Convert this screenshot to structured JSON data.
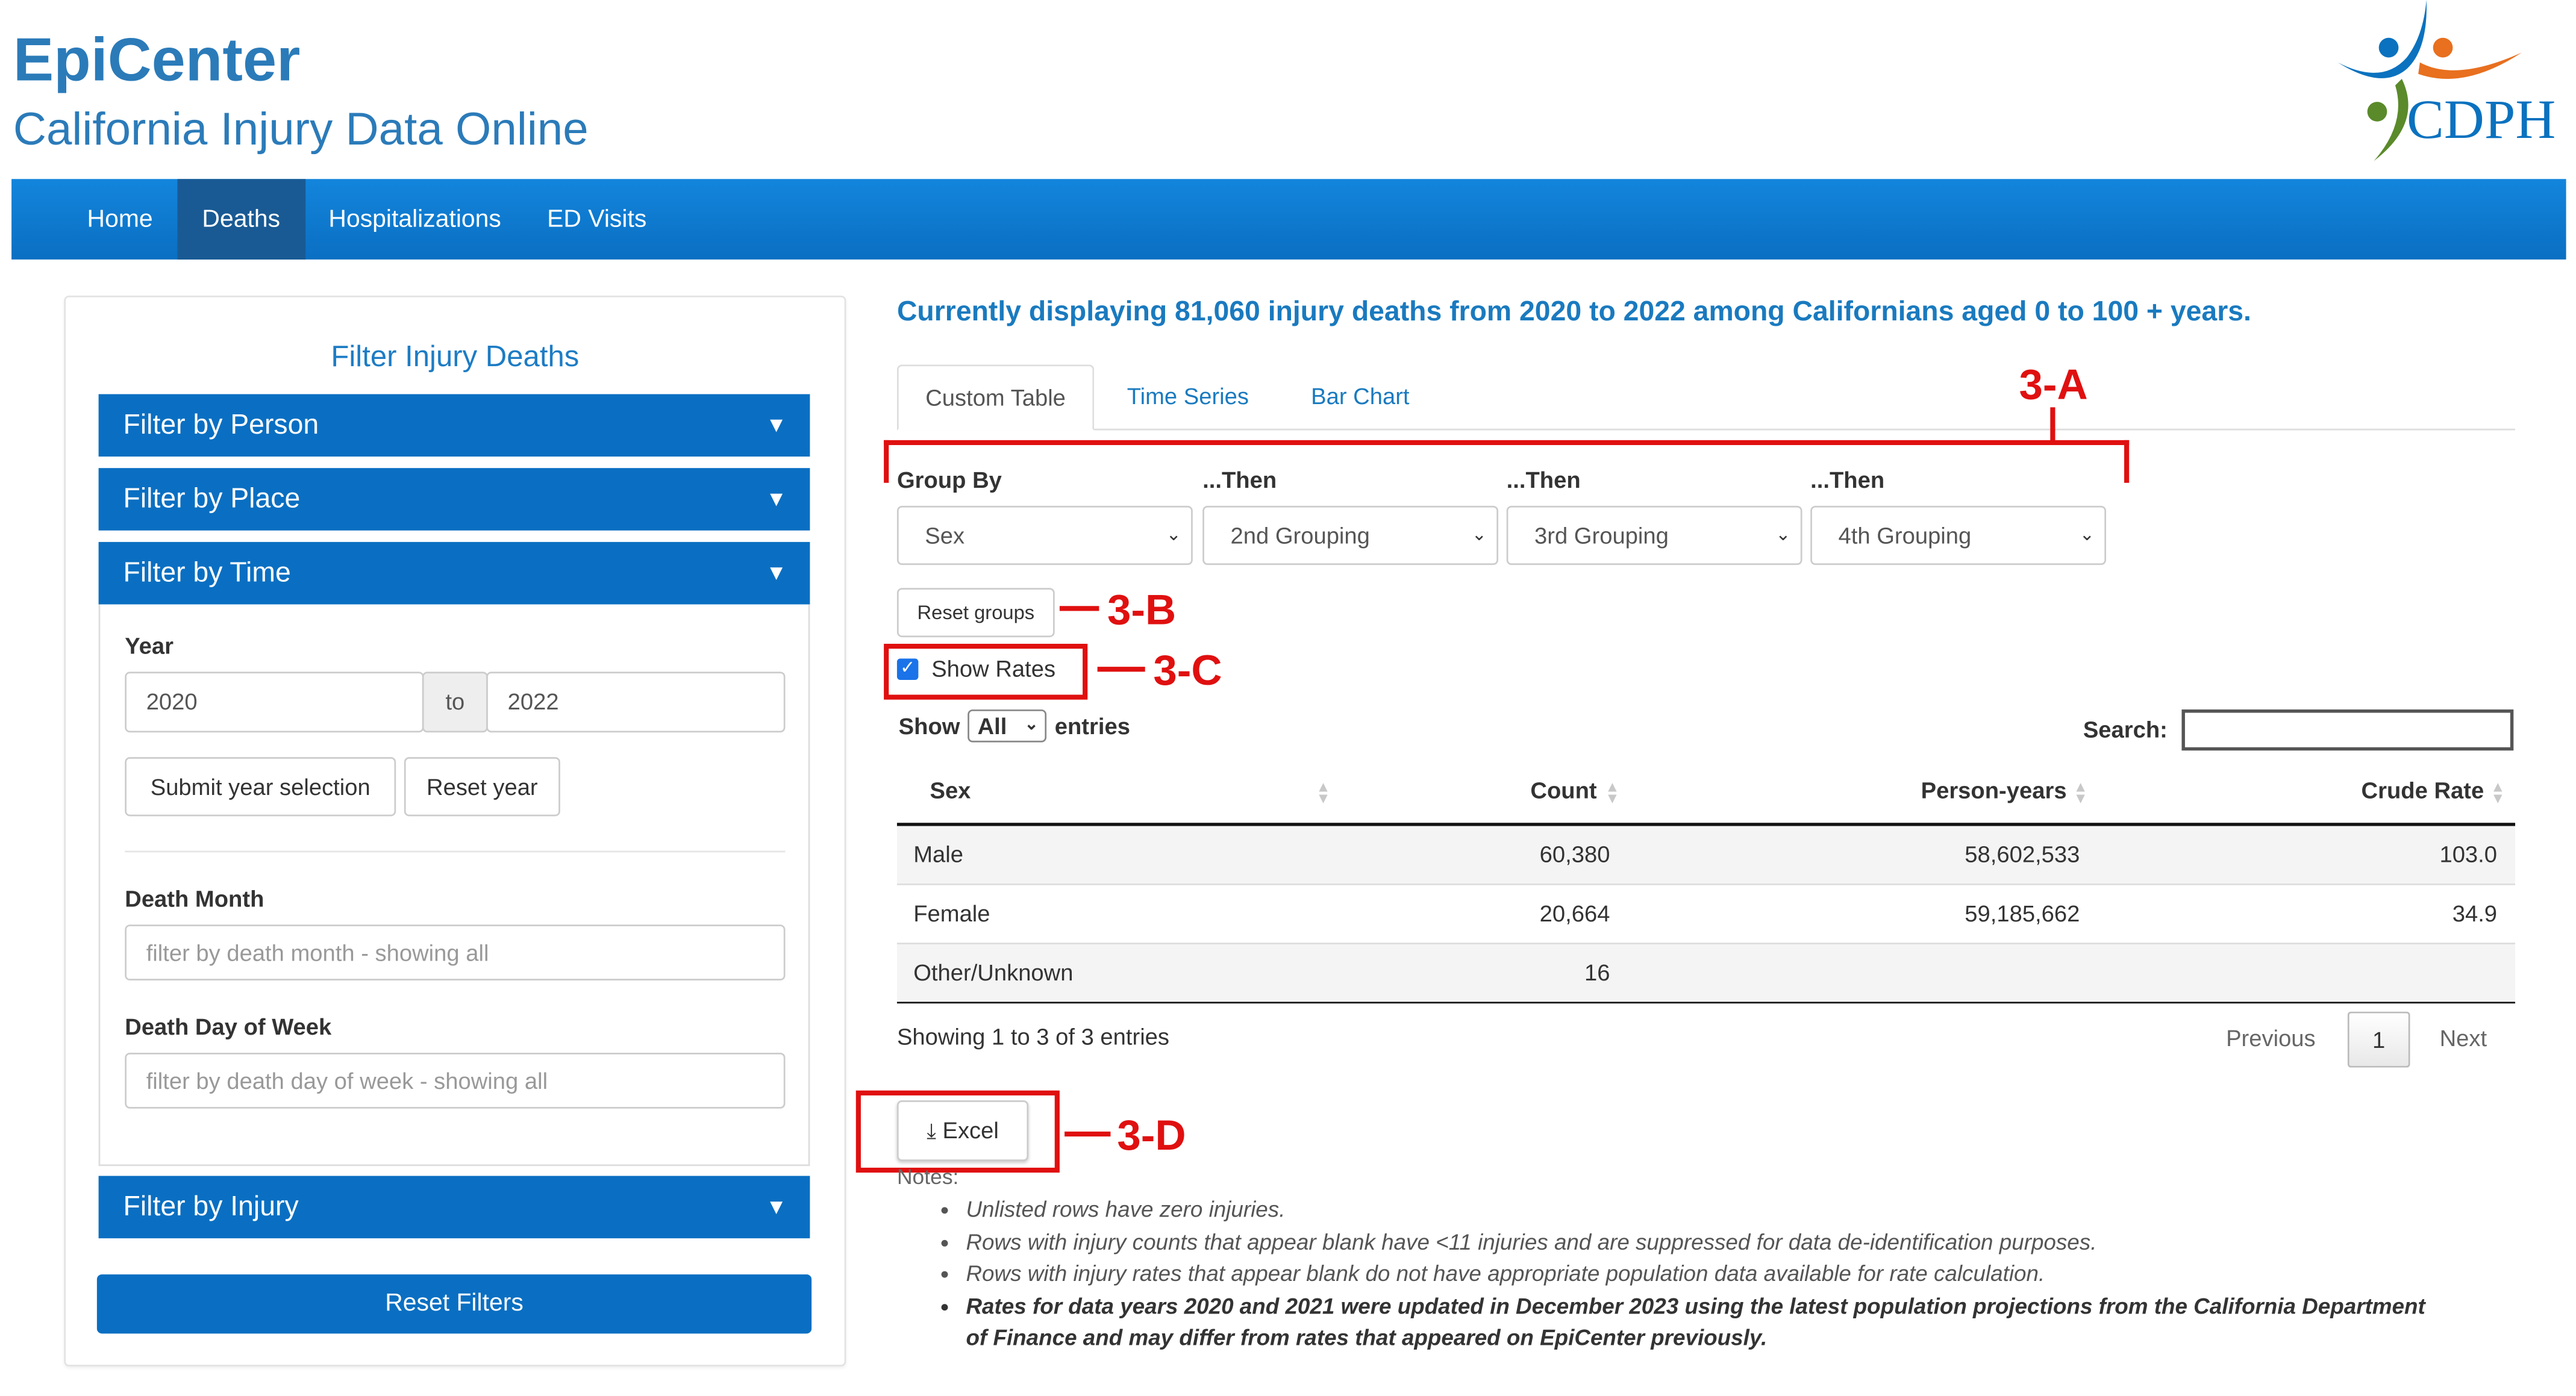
{
  "header": {
    "title": "EpiCenter",
    "subtitle": "California Injury Data Online",
    "logo_text": "CDPH"
  },
  "nav": {
    "items": [
      {
        "label": "Home"
      },
      {
        "label": "Deaths",
        "active": true
      },
      {
        "label": "Hospitalizations"
      },
      {
        "label": "ED Visits"
      }
    ]
  },
  "sidebar": {
    "title": "Filter Injury Deaths",
    "accordions": {
      "person": "Filter by Person",
      "place": "Filter by Place",
      "time": "Filter by Time",
      "injury": "Filter by Injury"
    },
    "year": {
      "label": "Year",
      "from": "2020",
      "to_label": "to",
      "to": "2022",
      "submit": "Submit year selection",
      "reset": "Reset year"
    },
    "death_month": {
      "label": "Death Month",
      "placeholder": "filter by death month - showing all"
    },
    "death_dow": {
      "label": "Death Day of Week",
      "placeholder": "filter by death day of week - showing all"
    },
    "reset_filters": "Reset Filters"
  },
  "main": {
    "summary": "Currently displaying 81,060 injury deaths from 2020 to 2022 among Californians aged 0 to 100 + years.",
    "tabs": [
      {
        "label": "Custom Table",
        "active": true
      },
      {
        "label": "Time Series"
      },
      {
        "label": "Bar Chart"
      }
    ],
    "groups": [
      {
        "label": "Group By",
        "value": "Sex"
      },
      {
        "label": "...Then",
        "value": "2nd Grouping"
      },
      {
        "label": "...Then",
        "value": "3rd Grouping"
      },
      {
        "label": "...Then",
        "value": "4th Grouping"
      }
    ],
    "reset_groups": "Reset groups",
    "show_rates": {
      "label": "Show Rates",
      "checked": true
    },
    "length": {
      "show": "Show",
      "value": "All",
      "entries": "entries"
    },
    "search": {
      "label": "Search:",
      "value": ""
    },
    "table": {
      "columns": [
        "Sex",
        "Count",
        "Person-years",
        "Crude Rate"
      ],
      "rows": [
        [
          "Male",
          "60,380",
          "58,602,533",
          "103.0"
        ],
        [
          "Female",
          "20,664",
          "59,185,662",
          "34.9"
        ],
        [
          "Other/Unknown",
          "16",
          "",
          ""
        ]
      ]
    },
    "info": "Showing 1 to 3 of 3 entries",
    "pagination": {
      "previous": "Previous",
      "page": "1",
      "next": "Next"
    },
    "excel": "Excel",
    "notes_label": "Notes:",
    "notes": [
      "Unlisted rows have zero injuries.",
      "Rows with injury counts that appear blank have <11 injuries and are suppressed for data de-identification purposes.",
      "Rows with injury rates that appear blank do not have appropriate population data available for rate calculation.",
      "Rates for data years 2020 and 2021 were updated in December 2023 using the latest population projections from the California Department of Finance and may differ from rates that appeared on EpiCenter previously."
    ]
  },
  "annotations": {
    "a": "3-A",
    "b": "3-B",
    "c": "3-C",
    "d": "3-D"
  },
  "colors": {
    "brand_blue": "#2b7bb9",
    "nav_blue": "#0a6fc2",
    "annotation_red": "#e01010"
  }
}
